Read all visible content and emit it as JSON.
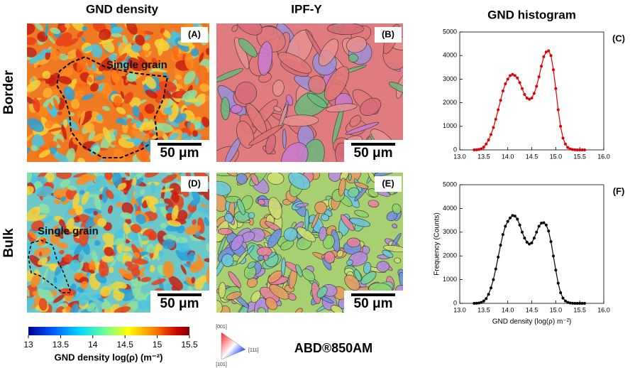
{
  "chart_data": [
    {
      "type": "line",
      "title": "GND histogram",
      "annotation": "(C)",
      "color": "#e00000",
      "markers": true,
      "x": [
        13.3,
        13.35,
        13.4,
        13.45,
        13.5,
        13.55,
        13.6,
        13.65,
        13.7,
        13.75,
        13.8,
        13.85,
        13.9,
        13.95,
        14.0,
        14.05,
        14.1,
        14.15,
        14.2,
        14.25,
        14.3,
        14.35,
        14.4,
        14.45,
        14.5,
        14.55,
        14.6,
        14.65,
        14.7,
        14.75,
        14.8,
        14.85,
        14.9,
        14.95,
        15.0,
        15.05,
        15.1,
        15.15,
        15.2,
        15.25,
        15.3,
        15.35,
        15.4,
        15.45,
        15.5,
        15.55,
        15.6
      ],
      "values": [
        0,
        5,
        20,
        50,
        120,
        250,
        420,
        650,
        950,
        1300,
        1700,
        2100,
        2500,
        2800,
        3000,
        3150,
        3200,
        3150,
        3050,
        2850,
        2600,
        2350,
        2200,
        2150,
        2200,
        2400,
        2700,
        3100,
        3550,
        3950,
        4150,
        4200,
        4000,
        3400,
        2600,
        1700,
        1000,
        500,
        250,
        100,
        40,
        15,
        5,
        0,
        0,
        0,
        0
      ],
      "xlim": [
        13,
        16
      ],
      "xticks": [
        {
          "value": 13,
          "label": "13.0"
        },
        {
          "value": 13.5,
          "label": "13.5"
        },
        {
          "value": 14,
          "label": "14.0"
        },
        {
          "value": 14.5,
          "label": "14.5"
        },
        {
          "value": 15,
          "label": "15.0"
        },
        {
          "value": 15.5,
          "label": "15.5"
        },
        {
          "value": 16,
          "label": "16.0"
        }
      ],
      "ylim": [
        0,
        5000
      ],
      "yticks": [
        0,
        1000,
        2000,
        3000,
        4000,
        5000
      ]
    },
    {
      "type": "line",
      "annotation": "(F)",
      "color": "#000000",
      "markers": true,
      "xlabel": "GND density (log(ρ) m⁻²)",
      "ylabel": "Frequency (Counts)",
      "x": [
        13.3,
        13.35,
        13.4,
        13.45,
        13.5,
        13.55,
        13.6,
        13.65,
        13.7,
        13.75,
        13.8,
        13.85,
        13.9,
        13.95,
        14.0,
        14.05,
        14.1,
        14.15,
        14.2,
        14.25,
        14.3,
        14.35,
        14.4,
        14.45,
        14.5,
        14.55,
        14.6,
        14.65,
        14.7,
        14.75,
        14.8,
        14.85,
        14.9,
        14.95,
        15.0,
        15.05,
        15.1,
        15.15,
        15.2,
        15.25,
        15.3,
        15.35,
        15.4,
        15.45,
        15.5,
        15.55,
        15.6
      ],
      "values": [
        0,
        5,
        15,
        40,
        100,
        200,
        380,
        650,
        1000,
        1450,
        1950,
        2450,
        2900,
        3250,
        3450,
        3600,
        3700,
        3680,
        3550,
        3300,
        3000,
        2750,
        2580,
        2500,
        2550,
        2750,
        3000,
        3250,
        3380,
        3400,
        3300,
        3050,
        2600,
        2000,
        1400,
        850,
        450,
        220,
        100,
        40,
        15,
        5,
        0,
        0,
        0,
        0,
        0
      ],
      "xlim": [
        13,
        16
      ],
      "xticks": [
        {
          "value": 13,
          "label": "13.0"
        },
        {
          "value": 13.5,
          "label": "13.5"
        },
        {
          "value": 14,
          "label": "14.0"
        },
        {
          "value": 14.5,
          "label": "14.5"
        },
        {
          "value": 15,
          "label": "15.0"
        },
        {
          "value": 15.5,
          "label": "15.5"
        },
        {
          "value": 16,
          "label": "16.0"
        }
      ],
      "ylim": [
        0,
        5000
      ],
      "yticks": [
        0,
        1000,
        2000,
        3000,
        4000,
        5000
      ]
    }
  ],
  "figure": {
    "columns": [
      "GND density",
      "IPF-Y"
    ],
    "rows": [
      "Border",
      "Bulk"
    ],
    "panels": [
      "(A)",
      "(B)",
      "(D)",
      "(E)"
    ],
    "region_labels": [
      "Single grain",
      "Single grain"
    ],
    "scale_bars": [
      "50 μm",
      "50 μm",
      "50 μm",
      "50 μm"
    ],
    "colorbar": {
      "lim": [
        13,
        15.5
      ],
      "ticks": [
        13,
        13.5,
        14,
        14.5,
        15,
        15.5
      ],
      "label": "GND density log(ρ) (m⁻²)"
    },
    "ipf_key": [
      "[001]",
      "[111]",
      "[101]"
    ],
    "material": "ABD®850AM"
  }
}
